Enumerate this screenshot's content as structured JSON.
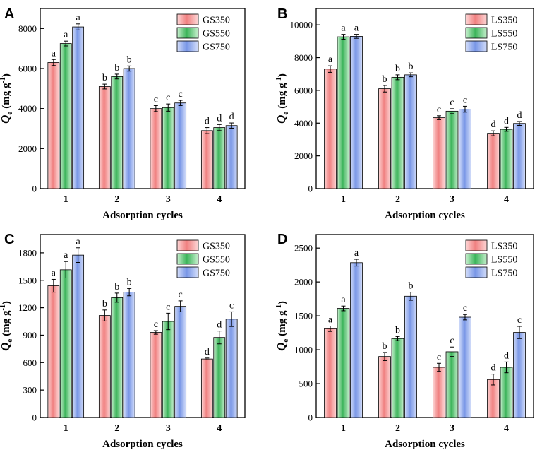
{
  "colors": {
    "series": [
      "#f08080",
      "#3cb45a",
      "#7896e6"
    ],
    "series_light": [
      "#fdd6d6",
      "#c8f0cf",
      "#d4defa"
    ],
    "axis": "#000000"
  },
  "chart_data": [
    {
      "id": "A",
      "panel_label": "A",
      "type": "bar",
      "xlabel": "Adsorption cycles",
      "ylabel_main": "Q",
      "ylabel_sub": "e",
      "ylabel_unit": "(mg g",
      "ylabel_exp": "-1",
      "ylabel_close": ")",
      "ylim": [
        0,
        9000
      ],
      "yticks": [
        0,
        2000,
        4000,
        6000,
        8000
      ],
      "legend_position": "top-right",
      "categories": [
        "1",
        "2",
        "3",
        "4"
      ],
      "series": [
        {
          "name": "GS350",
          "values": [
            6300,
            5100,
            4000,
            2900
          ],
          "errors": [
            150,
            120,
            150,
            150
          ],
          "labels": [
            "a",
            "b",
            "c",
            "d"
          ]
        },
        {
          "name": "GS550",
          "values": [
            7250,
            5600,
            4050,
            3050
          ],
          "errors": [
            120,
            120,
            180,
            150
          ],
          "labels": [
            "a",
            "b",
            "c",
            "d"
          ]
        },
        {
          "name": "GS750",
          "values": [
            8080,
            6000,
            4280,
            3150
          ],
          "errors": [
            150,
            130,
            130,
            130
          ],
          "labels": [
            "a",
            "b",
            "c",
            "d"
          ]
        }
      ]
    },
    {
      "id": "B",
      "panel_label": "B",
      "type": "bar",
      "xlabel": "Adsorption cycles",
      "ylabel_main": "Q",
      "ylabel_sub": "e",
      "ylabel_unit": "(mg g",
      "ylabel_exp": "-1",
      "ylabel_close": ")",
      "ylim": [
        0,
        11000
      ],
      "yticks": [
        0,
        2000,
        4000,
        6000,
        8000,
        10000
      ],
      "legend_position": "top-right",
      "categories": [
        "1",
        "2",
        "3",
        "4"
      ],
      "series": [
        {
          "name": "LS350",
          "values": [
            7300,
            6100,
            4330,
            3380
          ],
          "errors": [
            200,
            200,
            120,
            150
          ],
          "labels": [
            "a",
            "b",
            "c",
            "d"
          ]
        },
        {
          "name": "LS550",
          "values": [
            9270,
            6800,
            4730,
            3620
          ],
          "errors": [
            150,
            150,
            150,
            120
          ],
          "labels": [
            "a",
            "b",
            "c",
            "d"
          ]
        },
        {
          "name": "LS750",
          "values": [
            9300,
            6950,
            4850,
            3980
          ],
          "errors": [
            120,
            120,
            180,
            120
          ],
          "labels": [
            "a",
            "b",
            "c",
            "d"
          ]
        }
      ]
    },
    {
      "id": "C",
      "panel_label": "C",
      "type": "bar",
      "xlabel": "Adsorption cycles",
      "ylabel_main": "Q",
      "ylabel_sub": "e",
      "ylabel_unit": "(mg g",
      "ylabel_exp": "-1",
      "ylabel_close": ")",
      "ylim": [
        0,
        2000
      ],
      "yticks": [
        0,
        300,
        600,
        900,
        1200,
        1500,
        1800
      ],
      "legend_position": "top-right",
      "categories": [
        "1",
        "2",
        "3",
        "4"
      ],
      "series": [
        {
          "name": "GS350",
          "values": [
            1440,
            1115,
            930,
            640
          ],
          "errors": [
            70,
            60,
            20,
            10
          ],
          "labels": [
            "a",
            "b",
            "c",
            "d"
          ]
        },
        {
          "name": "GS550",
          "values": [
            1615,
            1310,
            1050,
            875
          ],
          "errors": [
            90,
            50,
            90,
            70
          ],
          "labels": [
            "a",
            "b",
            "c",
            "d"
          ]
        },
        {
          "name": "GS750",
          "values": [
            1775,
            1370,
            1215,
            1075
          ],
          "errors": [
            80,
            40,
            60,
            80
          ],
          "labels": [
            "a",
            "b",
            "c",
            "c"
          ]
        }
      ]
    },
    {
      "id": "D",
      "panel_label": "D",
      "type": "bar",
      "xlabel": "Adsorption cycles",
      "ylabel_main": "Q",
      "ylabel_sub": "e",
      "ylabel_unit": "(mg g",
      "ylabel_exp": "-1",
      "ylabel_close": ")",
      "ylim": [
        0,
        2700
      ],
      "yticks": [
        0,
        500,
        1000,
        1500,
        2000,
        2500
      ],
      "legend_position": "top-right",
      "categories": [
        "1",
        "2",
        "3",
        "4"
      ],
      "series": [
        {
          "name": "LS350",
          "values": [
            1310,
            900,
            740,
            560
          ],
          "errors": [
            40,
            60,
            60,
            80
          ],
          "labels": [
            "a",
            "b",
            "c",
            "d"
          ]
        },
        {
          "name": "LS550",
          "values": [
            1610,
            1165,
            970,
            740
          ],
          "errors": [
            35,
            30,
            70,
            80
          ],
          "labels": [
            "a",
            "b",
            "c",
            "d"
          ]
        },
        {
          "name": "LS750",
          "values": [
            2285,
            1790,
            1480,
            1255
          ],
          "errors": [
            50,
            60,
            40,
            90
          ],
          "labels": [
            "a",
            "b",
            "c",
            "c"
          ]
        }
      ]
    }
  ]
}
